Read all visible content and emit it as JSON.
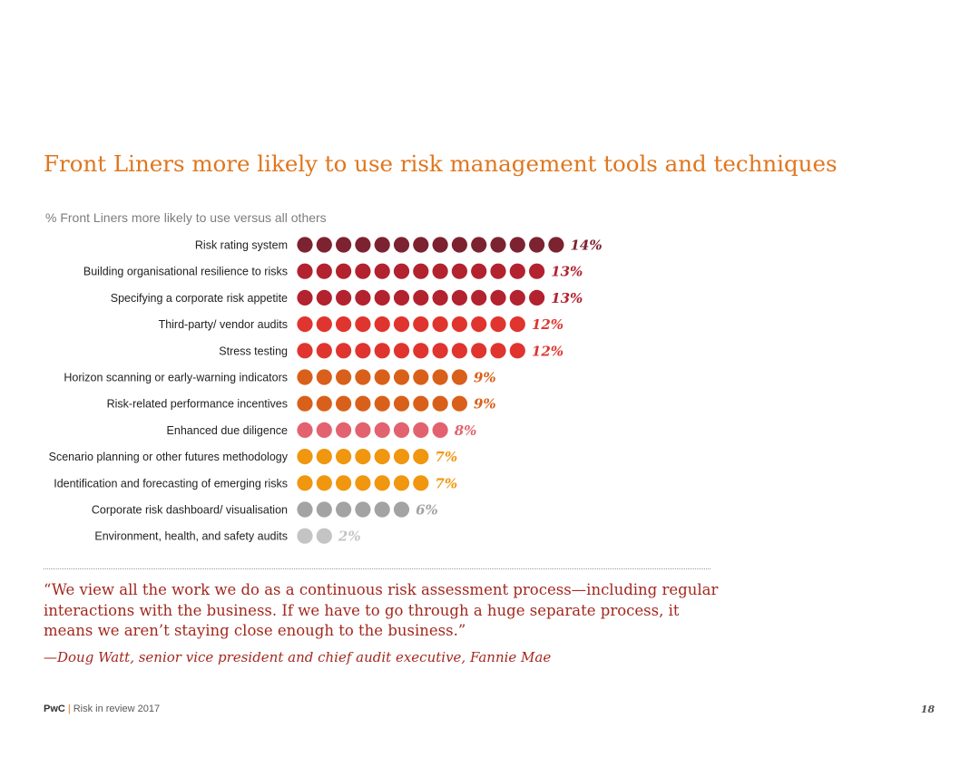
{
  "title": "Front Liners more likely to use risk management tools and techniques",
  "subtitle": "% Front Liners more likely to use versus all others",
  "chart_data": {
    "type": "bar",
    "orientation": "horizontal",
    "style": "dot-pictograph",
    "unit": "%",
    "categories": [
      "Risk rating system",
      "Building organisational resilience to risks",
      "Specifying a corporate risk appetite",
      "Third-party/ vendor audits",
      "Stress testing",
      "Horizon scanning or early-warning indicators",
      "Risk-related performance incentives",
      "Enhanced due diligence",
      "Scenario planning or other futures methodology",
      "Identification and forecasting of emerging risks",
      "Corporate risk dashboard/ visualisation",
      "Environment, health, and safety audits"
    ],
    "values": [
      14,
      13,
      13,
      12,
      12,
      9,
      9,
      8,
      7,
      7,
      6,
      2
    ],
    "value_labels": [
      "14%",
      "13%",
      "13%",
      "12%",
      "12%",
      "9%",
      "9%",
      "8%",
      "7%",
      "7%",
      "6%",
      "2%"
    ],
    "colors": [
      "#7d2230",
      "#b2222f",
      "#b2222f",
      "#e0342e",
      "#e0342e",
      "#d9601a",
      "#d9601a",
      "#e2636f",
      "#f0960f",
      "#f0960f",
      "#a3a3a3",
      "#c4c4c4"
    ]
  },
  "quote": {
    "text": "“We view all the work we do as a continuous risk assessment process—including regular interactions with the business. If we have to go through a huge separate process, it means we aren’t staying close enough to the business.”",
    "attribution": "—Doug Watt, senior vice president and chief audit executive, Fannie Mae"
  },
  "footer": {
    "brand": "PwC",
    "separator": "|",
    "publication": "Risk in review 2017",
    "page_number": "18"
  }
}
